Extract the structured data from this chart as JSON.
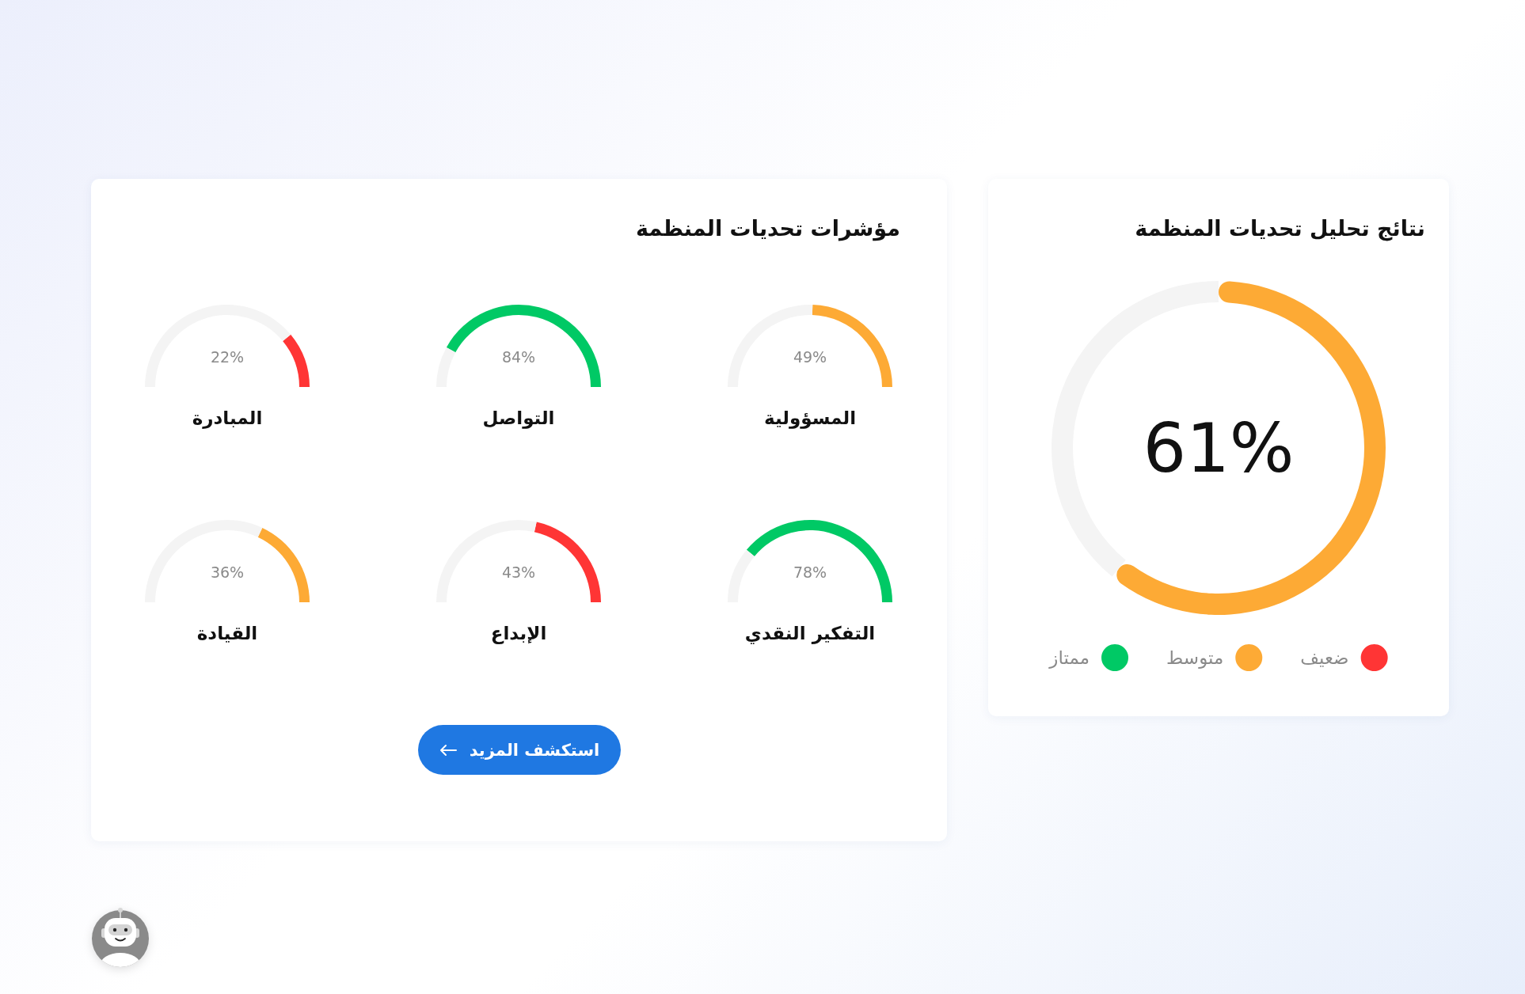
{
  "chart_data": [
    {
      "type": "donut",
      "title": "نتائج تحليل تحديات المنظمة",
      "categories": [
        "ضعيف",
        "متوسط",
        "ممتاز",
        null
      ],
      "values": [
        null,
        61,
        null,
        39
      ],
      "colors": [
        "#ff3535",
        "#fdaa35",
        "#00c965",
        "#f4f4f4"
      ],
      "annotations": [
        "61%"
      ],
      "legend": "bottom"
    },
    {
      "type": "other",
      "title": "مؤشرات تحديات المنظمة",
      "annotations": [
        "استكشف المزيد"
      ]
    },
    {
      "type": "donut",
      "title": "المسؤولية",
      "categories": [
        null,
        null
      ],
      "values": [
        49,
        51
      ],
      "colors": [
        "#fdaa35",
        "#f4f4f4"
      ],
      "annotations": [
        "49%"
      ]
    },
    {
      "type": "donut",
      "title": "التواصل",
      "categories": [
        null,
        null
      ],
      "values": [
        84,
        16
      ],
      "colors": [
        "#00c965",
        "#f4f4f4"
      ],
      "annotations": [
        "84%"
      ]
    },
    {
      "type": "donut",
      "title": "المبادرة",
      "categories": [
        null,
        null
      ],
      "values": [
        22,
        78
      ],
      "colors": [
        "#ff3535",
        "#f4f4f4"
      ],
      "annotations": [
        "22%"
      ]
    },
    {
      "type": "donut",
      "title": "التفكير النقدي",
      "categories": [
        null,
        null
      ],
      "values": [
        78,
        22
      ],
      "colors": [
        "#00c965",
        "#f4f4f4"
      ],
      "annotations": [
        "78%"
      ]
    },
    {
      "type": "donut",
      "title": "الإبداع",
      "categories": [
        null,
        null
      ],
      "values": [
        43,
        57
      ],
      "colors": [
        "#ff3535",
        "#f4f4f4"
      ],
      "annotations": [
        "43%"
      ]
    },
    {
      "type": "donut",
      "title": "القيادة",
      "categories": [
        null,
        null
      ],
      "values": [
        36,
        64
      ],
      "colors": [
        "#fdaa35",
        "#f4f4f4"
      ],
      "annotations": [
        "36%"
      ]
    }
  ]
}
